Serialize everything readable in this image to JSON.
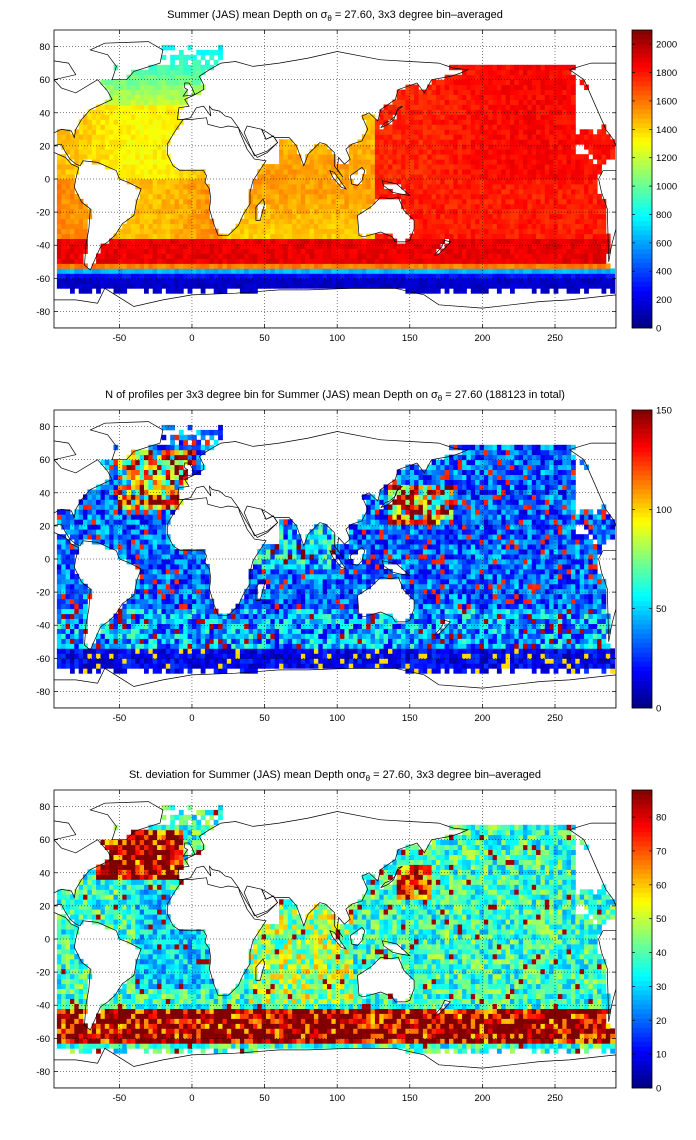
{
  "chart_data": [
    {
      "type": "heatmap",
      "title_pre": "Summer (JAS) mean Depth on ",
      "title_sym": "σ",
      "title_sub": "θ",
      "title_post": " = 27.60, 3x3 degree bin–averaged",
      "xlim": [
        -95,
        292
      ],
      "ylim": [
        -90,
        90
      ],
      "xticks": [
        -50,
        0,
        50,
        100,
        150,
        200,
        250
      ],
      "yticks": [
        80,
        60,
        40,
        20,
        0,
        -20,
        -40,
        -60,
        -80
      ],
      "colorbar": {
        "min": 0,
        "max": 2100,
        "ticks": [
          0,
          200,
          400,
          600,
          800,
          1000,
          1200,
          1400,
          1600,
          1800,
          2000
        ]
      },
      "grid": true,
      "colormap": "jet",
      "field": {
        "north_atlantic": 1400,
        "south_atlantic": 1500,
        "indian": 1700,
        "north_pacific": 1800,
        "south_pacific": 1750,
        "southern_ocean_band": 1850,
        "antarctic_margin": 300
      }
    },
    {
      "type": "heatmap",
      "title_pre": "N of profiles per 3x3 degree bin for Summer (JAS) mean Depth on ",
      "title_sym": "σ",
      "title_sub": "θ",
      "title_post": " = 27.60 (188123 in total)",
      "xlim": [
        -95,
        292
      ],
      "ylim": [
        -90,
        90
      ],
      "xticks": [
        -50,
        0,
        50,
        100,
        150,
        200,
        250
      ],
      "yticks": [
        80,
        60,
        40,
        20,
        0,
        -20,
        -40,
        -60,
        -80
      ],
      "colorbar": {
        "min": 0,
        "max": 150,
        "ticks": [
          0,
          50,
          100,
          150
        ]
      },
      "grid": true,
      "colormap": "jet",
      "total_profiles": 188123
    },
    {
      "type": "heatmap",
      "title_pre": "St. deviation for Summer (JAS) mean Depth on",
      "title_sym": "σ",
      "title_sub": "θ",
      "title_post": " = 27.60, 3x3 degree bin–averaged",
      "xlim": [
        -95,
        292
      ],
      "ylim": [
        -90,
        90
      ],
      "xticks": [
        -50,
        0,
        50,
        100,
        150,
        200,
        250
      ],
      "yticks": [
        80,
        60,
        40,
        20,
        0,
        -20,
        -40,
        -60,
        -80
      ],
      "colorbar": {
        "min": 0,
        "max": 88,
        "ticks": [
          0,
          10,
          20,
          30,
          40,
          50,
          60,
          70,
          80
        ]
      },
      "grid": true,
      "colormap": "jet",
      "field": {
        "acc_band": 85,
        "north_atlantic_high": 85,
        "kuroshio": 75,
        "open_ocean": 40,
        "south_indian": 40
      }
    }
  ]
}
